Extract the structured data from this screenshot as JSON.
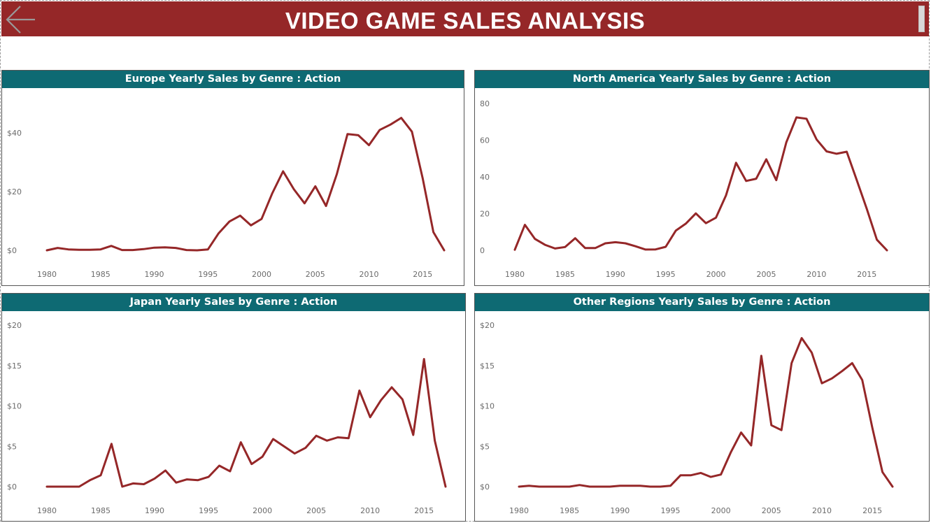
{
  "header": {
    "title": "VIDEO GAME SALES ANALYSIS",
    "back_icon": "back-arrow-icon"
  },
  "colors": {
    "banner": "#952728",
    "panel_header": "#0e6a73",
    "line": "#952728"
  },
  "chart_data": [
    {
      "id": "europe",
      "type": "line",
      "title": "Europe Yearly Sales by Genre : Action",
      "x_ticks": [
        "1980",
        "1985",
        "1990",
        "1995",
        "2000",
        "2005",
        "2010",
        "2015"
      ],
      "y_ticks": [
        "$0",
        "$20",
        "$40"
      ],
      "y_tick_values": [
        0,
        20,
        40
      ],
      "xlim": [
        1980,
        2017
      ],
      "ylim": [
        0,
        50
      ],
      "series": [
        {
          "x": [
            1980,
            1981,
            1982,
            1983,
            1984,
            1985,
            1986,
            1987,
            1988,
            1989,
            1990,
            1991,
            1992,
            1993,
            1994,
            1995,
            1996,
            1997,
            1998,
            1999,
            2000,
            2001,
            2002,
            2003,
            2004,
            2005,
            2006,
            2007,
            2008,
            2009,
            2010,
            2011,
            2012,
            2013,
            2014,
            2015,
            2016,
            2017
          ],
          "values": [
            0.0,
            0.8,
            0.3,
            0.2,
            0.2,
            0.3,
            1.5,
            0.1,
            0.1,
            0.4,
            0.9,
            1.0,
            0.8,
            0.1,
            0.0,
            0.3,
            5.8,
            9.8,
            11.8,
            8.5,
            10.7,
            19.5,
            26.9,
            20.8,
            16.0,
            21.8,
            15.1,
            25.9,
            39.6,
            39.2,
            35.8,
            41.0,
            42.8,
            45.1,
            40.4,
            24.5,
            6.2,
            0.0
          ]
        }
      ]
    },
    {
      "id": "north-america",
      "type": "line",
      "title": "North America Yearly Sales by Genre : Action",
      "x_ticks": [
        "1980",
        "1985",
        "1990",
        "1995",
        "2000",
        "2005",
        "2010",
        "2015"
      ],
      "y_ticks": [
        "0",
        "20",
        "40",
        "60",
        "80"
      ],
      "y_tick_values": [
        0,
        20,
        40,
        60,
        80
      ],
      "xlim": [
        1980,
        2017
      ],
      "ylim": [
        0,
        80
      ],
      "series": [
        {
          "x": [
            1980,
            1981,
            1982,
            1983,
            1984,
            1985,
            1986,
            1987,
            1988,
            1989,
            1990,
            1991,
            1992,
            1993,
            1994,
            1995,
            1996,
            1997,
            1998,
            1999,
            2000,
            2001,
            2002,
            2003,
            2004,
            2005,
            2006,
            2007,
            2008,
            2009,
            2010,
            2011,
            2012,
            2013,
            2014,
            2015,
            2016,
            2017
          ],
          "values": [
            0.3,
            13.9,
            6.2,
            3.0,
            1.0,
            1.8,
            6.6,
            1.2,
            1.2,
            3.8,
            4.4,
            3.8,
            2.2,
            0.4,
            0.5,
            1.9,
            10.7,
            14.5,
            20.1,
            14.8,
            17.8,
            29.9,
            47.7,
            37.8,
            39.0,
            49.6,
            38.2,
            58.9,
            72.4,
            71.7,
            60.4,
            53.9,
            52.6,
            53.7,
            38.2,
            22.6,
            5.8,
            0.0
          ]
        }
      ]
    },
    {
      "id": "japan",
      "type": "line",
      "title": "Japan Yearly Sales by Genre : Action",
      "x_ticks": [
        "1980",
        "1985",
        "1990",
        "1995",
        "2000",
        "2005",
        "2010",
        "2015"
      ],
      "y_ticks": [
        "$0",
        "$5",
        "$10",
        "$15",
        "$20"
      ],
      "y_tick_values": [
        0,
        5,
        10,
        15,
        20
      ],
      "xlim": [
        1980,
        2017
      ],
      "ylim": [
        0,
        20
      ],
      "series": [
        {
          "x": [
            1980,
            1981,
            1982,
            1983,
            1984,
            1985,
            1986,
            1987,
            1988,
            1989,
            1990,
            1991,
            1992,
            1993,
            1994,
            1995,
            1996,
            1997,
            1998,
            1999,
            2000,
            2001,
            2002,
            2003,
            2004,
            2005,
            2006,
            2007,
            2008,
            2009,
            2010,
            2011,
            2012,
            2013,
            2014,
            2015,
            2016,
            2017
          ],
          "values": [
            0.0,
            0.0,
            0.0,
            0.0,
            0.8,
            1.4,
            5.3,
            0.0,
            0.4,
            0.3,
            1.0,
            2.0,
            0.5,
            0.9,
            0.8,
            1.2,
            2.6,
            1.9,
            5.5,
            2.8,
            3.7,
            5.9,
            5.0,
            4.1,
            4.8,
            6.3,
            5.7,
            6.1,
            6.0,
            11.9,
            8.6,
            10.7,
            12.3,
            10.8,
            6.4,
            15.8,
            5.7,
            0.0
          ]
        }
      ]
    },
    {
      "id": "other-regions",
      "type": "line",
      "title": "Other Regions Yearly Sales by Genre : Action",
      "x_ticks": [
        "1980",
        "1985",
        "1990",
        "1995",
        "2000",
        "2005",
        "2010",
        "2015"
      ],
      "y_ticks": [
        "$0",
        "$5",
        "$10",
        "$15",
        "$20"
      ],
      "y_tick_values": [
        0,
        5,
        10,
        15,
        20
      ],
      "xlim": [
        1980,
        2017
      ],
      "ylim": [
        0,
        20
      ],
      "series": [
        {
          "x": [
            1980,
            1981,
            1982,
            1983,
            1984,
            1985,
            1986,
            1987,
            1988,
            1989,
            1990,
            1991,
            1992,
            1993,
            1994,
            1995,
            1996,
            1997,
            1998,
            1999,
            2000,
            2001,
            2002,
            2003,
            2004,
            2005,
            2006,
            2007,
            2008,
            2009,
            2010,
            2011,
            2012,
            2013,
            2014,
            2015,
            2016,
            2017
          ],
          "values": [
            0.0,
            0.1,
            0.0,
            0.0,
            0.0,
            0.0,
            0.2,
            0.0,
            0.0,
            0.0,
            0.1,
            0.1,
            0.1,
            0.0,
            0.0,
            0.1,
            1.4,
            1.4,
            1.7,
            1.2,
            1.5,
            4.3,
            6.7,
            5.1,
            16.2,
            7.6,
            7.0,
            15.3,
            18.4,
            16.6,
            12.8,
            13.4,
            14.3,
            15.3,
            13.2,
            7.3,
            1.8,
            0.0
          ]
        }
      ]
    }
  ]
}
